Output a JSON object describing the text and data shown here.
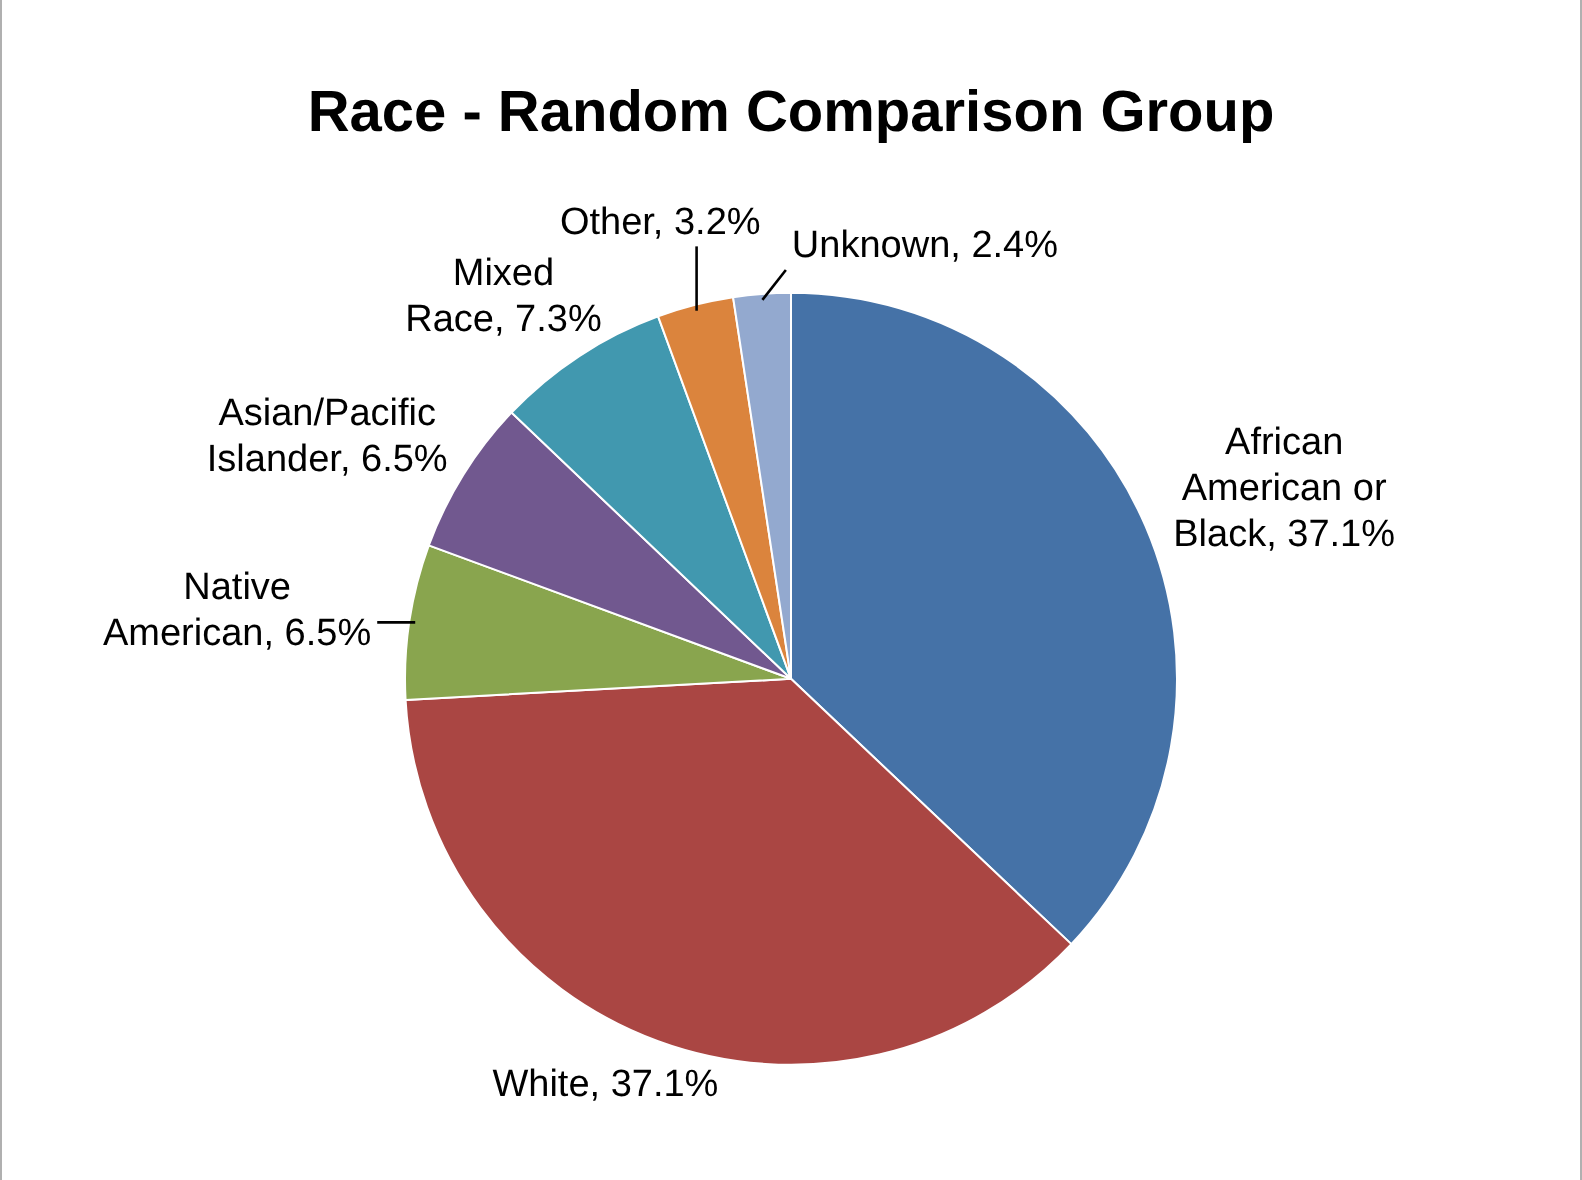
{
  "chart_data": {
    "type": "pie",
    "title": "Race - Random Comparison Group",
    "categories": [
      "African American or Black",
      "White",
      "Native American",
      "Asian/Pacific Islander",
      "Mixed Race",
      "Other",
      "Unknown"
    ],
    "values": [
      37.1,
      37.1,
      6.5,
      6.5,
      7.3,
      3.2,
      2.4
    ],
    "value_labels": [
      "37.1%",
      "37.1%",
      "6.5%",
      "6.5%",
      "7.3%",
      "3.2%",
      "2.4%"
    ],
    "colors": [
      "#4572a7",
      "#aa4643",
      "#89a54e",
      "#71588f",
      "#4198af",
      "#db843d",
      "#93a9cf"
    ],
    "legend": false
  }
}
